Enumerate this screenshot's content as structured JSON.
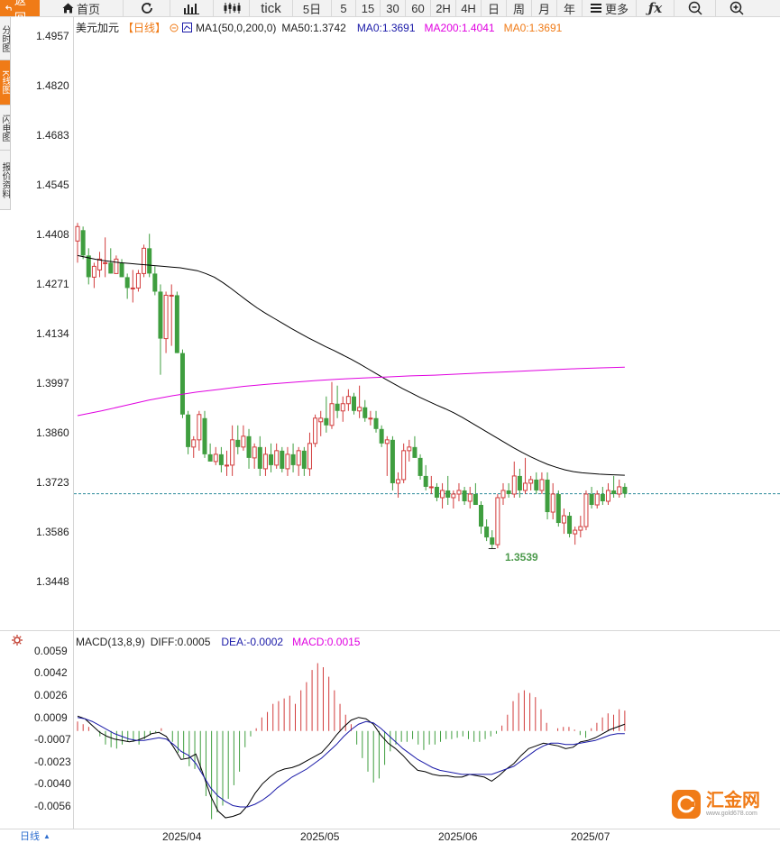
{
  "toolbar": {
    "back_label": "返回",
    "home_label": "首页",
    "more_label": "更多",
    "period_5d": "5日",
    "period_5": "5",
    "period_15": "15",
    "period_30": "30",
    "period_60": "60",
    "period_2h": "2H",
    "period_4h": "4H",
    "period_day": "日",
    "period_week": "周",
    "period_month": "月",
    "period_year": "年",
    "tick_label": "tick"
  },
  "left_tabs": [
    "分时图",
    "K线图",
    "闪电图",
    "报价资料"
  ],
  "legend": {
    "symbol": "美元加元",
    "period": "【日线】",
    "ma_name": "MA1(50,0,200,0)",
    "ma50": "MA50:1.3742",
    "ma0a": "MA0:1.3691",
    "ma200": "MA200:1.4041",
    "ma0b": "MA0:1.3691"
  },
  "macd_legend": {
    "name": "MACD(13,8,9)",
    "diff": "DIFF:0.0005",
    "dea": "DEA:-0.0002",
    "macd": "MACD:0.0015"
  },
  "price_axis": [
    "1.4957",
    "1.4820",
    "1.4683",
    "1.4545",
    "1.4408",
    "1.4271",
    "1.4134",
    "1.3997",
    "1.3860",
    "1.3723",
    "1.3586",
    "1.3448"
  ],
  "macd_axis": [
    "0.0059",
    "0.0042",
    "0.0026",
    "0.0009",
    "-0.0007",
    "-0.0023",
    "-0.0040",
    "-0.0056"
  ],
  "low_annotation": "1.3539",
  "current_price": 1.3691,
  "dates": [
    "2025/04",
    "2025/05",
    "2025/06",
    "2025/07"
  ],
  "bottom_period": "日线",
  "logo": {
    "name": "汇金网",
    "url": "www.gold678.com"
  },
  "colors": {
    "up": "#d23c3c",
    "down": "#3f9e3f",
    "ma50": "#000000",
    "ma200": "#e000e0",
    "accent": "#f07b17",
    "dea": "#1a1aa8",
    "macd_pos": "#d23c3c",
    "macd_neg": "#3f9e3f"
  },
  "chart_data": {
    "type": "candlestick",
    "title": "美元加元【日线】",
    "ylim": [
      1.34,
      1.5
    ],
    "candles": [
      {
        "o": 1.439,
        "h": 1.444,
        "l": 1.433,
        "c": 1.443
      },
      {
        "o": 1.442,
        "h": 1.443,
        "l": 1.434,
        "c": 1.435
      },
      {
        "o": 1.435,
        "h": 1.437,
        "l": 1.427,
        "c": 1.429
      },
      {
        "o": 1.429,
        "h": 1.433,
        "l": 1.426,
        "c": 1.432
      },
      {
        "o": 1.431,
        "h": 1.436,
        "l": 1.429,
        "c": 1.434
      },
      {
        "o": 1.433,
        "h": 1.44,
        "l": 1.429,
        "c": 1.433
      },
      {
        "o": 1.433,
        "h": 1.437,
        "l": 1.43,
        "c": 1.43
      },
      {
        "o": 1.43,
        "h": 1.435,
        "l": 1.43,
        "c": 1.434
      },
      {
        "o": 1.433,
        "h": 1.434,
        "l": 1.429,
        "c": 1.429
      },
      {
        "o": 1.429,
        "h": 1.43,
        "l": 1.423,
        "c": 1.426
      },
      {
        "o": 1.426,
        "h": 1.431,
        "l": 1.422,
        "c": 1.426
      },
      {
        "o": 1.426,
        "h": 1.431,
        "l": 1.425,
        "c": 1.43
      },
      {
        "o": 1.43,
        "h": 1.438,
        "l": 1.429,
        "c": 1.437
      },
      {
        "o": 1.437,
        "h": 1.441,
        "l": 1.429,
        "c": 1.43
      },
      {
        "o": 1.43,
        "h": 1.432,
        "l": 1.424,
        "c": 1.425
      },
      {
        "o": 1.425,
        "h": 1.427,
        "l": 1.402,
        "c": 1.412
      },
      {
        "o": 1.412,
        "h": 1.425,
        "l": 1.408,
        "c": 1.424
      },
      {
        "o": 1.424,
        "h": 1.427,
        "l": 1.41,
        "c": 1.424
      },
      {
        "o": 1.424,
        "h": 1.425,
        "l": 1.408,
        "c": 1.408
      },
      {
        "o": 1.408,
        "h": 1.409,
        "l": 1.39,
        "c": 1.391
      },
      {
        "o": 1.391,
        "h": 1.392,
        "l": 1.38,
        "c": 1.382
      },
      {
        "o": 1.382,
        "h": 1.385,
        "l": 1.379,
        "c": 1.384
      },
      {
        "o": 1.384,
        "h": 1.392,
        "l": 1.381,
        "c": 1.391
      },
      {
        "o": 1.39,
        "h": 1.392,
        "l": 1.379,
        "c": 1.38
      },
      {
        "o": 1.38,
        "h": 1.383,
        "l": 1.378,
        "c": 1.378
      },
      {
        "o": 1.378,
        "h": 1.382,
        "l": 1.377,
        "c": 1.38
      },
      {
        "o": 1.38,
        "h": 1.382,
        "l": 1.375,
        "c": 1.377
      },
      {
        "o": 1.377,
        "h": 1.381,
        "l": 1.374,
        "c": 1.377
      },
      {
        "o": 1.377,
        "h": 1.388,
        "l": 1.374,
        "c": 1.384
      },
      {
        "o": 1.384,
        "h": 1.388,
        "l": 1.38,
        "c": 1.382
      },
      {
        "o": 1.382,
        "h": 1.388,
        "l": 1.381,
        "c": 1.385
      },
      {
        "o": 1.385,
        "h": 1.387,
        "l": 1.376,
        "c": 1.379
      },
      {
        "o": 1.379,
        "h": 1.383,
        "l": 1.376,
        "c": 1.382
      },
      {
        "o": 1.382,
        "h": 1.385,
        "l": 1.374,
        "c": 1.376
      },
      {
        "o": 1.376,
        "h": 1.382,
        "l": 1.374,
        "c": 1.38
      },
      {
        "o": 1.38,
        "h": 1.383,
        "l": 1.375,
        "c": 1.377
      },
      {
        "o": 1.377,
        "h": 1.383,
        "l": 1.376,
        "c": 1.381
      },
      {
        "o": 1.381,
        "h": 1.382,
        "l": 1.375,
        "c": 1.376
      },
      {
        "o": 1.376,
        "h": 1.382,
        "l": 1.374,
        "c": 1.38
      },
      {
        "o": 1.38,
        "h": 1.383,
        "l": 1.375,
        "c": 1.377
      },
      {
        "o": 1.377,
        "h": 1.382,
        "l": 1.374,
        "c": 1.381
      },
      {
        "o": 1.381,
        "h": 1.382,
        "l": 1.374,
        "c": 1.376
      },
      {
        "o": 1.376,
        "h": 1.386,
        "l": 1.374,
        "c": 1.383
      },
      {
        "o": 1.383,
        "h": 1.391,
        "l": 1.382,
        "c": 1.39
      },
      {
        "o": 1.389,
        "h": 1.392,
        "l": 1.385,
        "c": 1.39
      },
      {
        "o": 1.39,
        "h": 1.396,
        "l": 1.386,
        "c": 1.388
      },
      {
        "o": 1.388,
        "h": 1.4,
        "l": 1.387,
        "c": 1.394
      },
      {
        "o": 1.394,
        "h": 1.399,
        "l": 1.39,
        "c": 1.392
      },
      {
        "o": 1.392,
        "h": 1.396,
        "l": 1.389,
        "c": 1.394
      },
      {
        "o": 1.394,
        "h": 1.398,
        "l": 1.392,
        "c": 1.396
      },
      {
        "o": 1.396,
        "h": 1.397,
        "l": 1.391,
        "c": 1.392
      },
      {
        "o": 1.392,
        "h": 1.399,
        "l": 1.39,
        "c": 1.393
      },
      {
        "o": 1.393,
        "h": 1.395,
        "l": 1.389,
        "c": 1.39
      },
      {
        "o": 1.39,
        "h": 1.392,
        "l": 1.388,
        "c": 1.39
      },
      {
        "o": 1.39,
        "h": 1.392,
        "l": 1.386,
        "c": 1.387
      },
      {
        "o": 1.387,
        "h": 1.388,
        "l": 1.382,
        "c": 1.383
      },
      {
        "o": 1.383,
        "h": 1.385,
        "l": 1.374,
        "c": 1.384
      },
      {
        "o": 1.384,
        "h": 1.385,
        "l": 1.37,
        "c": 1.372
      },
      {
        "o": 1.372,
        "h": 1.375,
        "l": 1.368,
        "c": 1.373
      },
      {
        "o": 1.373,
        "h": 1.383,
        "l": 1.372,
        "c": 1.381
      },
      {
        "o": 1.381,
        "h": 1.384,
        "l": 1.378,
        "c": 1.382
      },
      {
        "o": 1.382,
        "h": 1.385,
        "l": 1.379,
        "c": 1.379
      },
      {
        "o": 1.379,
        "h": 1.38,
        "l": 1.373,
        "c": 1.374
      },
      {
        "o": 1.374,
        "h": 1.377,
        "l": 1.37,
        "c": 1.371
      },
      {
        "o": 1.371,
        "h": 1.374,
        "l": 1.369,
        "c": 1.371
      },
      {
        "o": 1.371,
        "h": 1.372,
        "l": 1.367,
        "c": 1.368
      },
      {
        "o": 1.368,
        "h": 1.372,
        "l": 1.365,
        "c": 1.37
      },
      {
        "o": 1.37,
        "h": 1.374,
        "l": 1.366,
        "c": 1.368
      },
      {
        "o": 1.368,
        "h": 1.37,
        "l": 1.365,
        "c": 1.369
      },
      {
        "o": 1.369,
        "h": 1.372,
        "l": 1.367,
        "c": 1.37
      },
      {
        "o": 1.37,
        "h": 1.371,
        "l": 1.366,
        "c": 1.367
      },
      {
        "o": 1.367,
        "h": 1.371,
        "l": 1.365,
        "c": 1.369
      },
      {
        "o": 1.369,
        "h": 1.372,
        "l": 1.366,
        "c": 1.366
      },
      {
        "o": 1.366,
        "h": 1.367,
        "l": 1.358,
        "c": 1.36
      },
      {
        "o": 1.36,
        "h": 1.362,
        "l": 1.356,
        "c": 1.357
      },
      {
        "o": 1.357,
        "h": 1.359,
        "l": 1.3539,
        "c": 1.355
      },
      {
        "o": 1.355,
        "h": 1.369,
        "l": 1.354,
        "c": 1.368
      },
      {
        "o": 1.368,
        "h": 1.372,
        "l": 1.366,
        "c": 1.37
      },
      {
        "o": 1.37,
        "h": 1.372,
        "l": 1.368,
        "c": 1.369
      },
      {
        "o": 1.369,
        "h": 1.378,
        "l": 1.368,
        "c": 1.374
      },
      {
        "o": 1.374,
        "h": 1.376,
        "l": 1.368,
        "c": 1.37
      },
      {
        "o": 1.37,
        "h": 1.379,
        "l": 1.369,
        "c": 1.372
      },
      {
        "o": 1.372,
        "h": 1.374,
        "l": 1.37,
        "c": 1.373
      },
      {
        "o": 1.373,
        "h": 1.375,
        "l": 1.369,
        "c": 1.37
      },
      {
        "o": 1.37,
        "h": 1.375,
        "l": 1.369,
        "c": 1.373
      },
      {
        "o": 1.373,
        "h": 1.375,
        "l": 1.362,
        "c": 1.364
      },
      {
        "o": 1.364,
        "h": 1.372,
        "l": 1.362,
        "c": 1.369
      },
      {
        "o": 1.369,
        "h": 1.37,
        "l": 1.36,
        "c": 1.361
      },
      {
        "o": 1.361,
        "h": 1.365,
        "l": 1.358,
        "c": 1.363
      },
      {
        "o": 1.363,
        "h": 1.364,
        "l": 1.357,
        "c": 1.358
      },
      {
        "o": 1.358,
        "h": 1.36,
        "l": 1.355,
        "c": 1.359
      },
      {
        "o": 1.359,
        "h": 1.363,
        "l": 1.357,
        "c": 1.36
      },
      {
        "o": 1.36,
        "h": 1.37,
        "l": 1.359,
        "c": 1.369
      },
      {
        "o": 1.369,
        "h": 1.371,
        "l": 1.365,
        "c": 1.366
      },
      {
        "o": 1.366,
        "h": 1.37,
        "l": 1.365,
        "c": 1.369
      },
      {
        "o": 1.369,
        "h": 1.371,
        "l": 1.366,
        "c": 1.367
      },
      {
        "o": 1.367,
        "h": 1.372,
        "l": 1.366,
        "c": 1.37
      },
      {
        "o": 1.37,
        "h": 1.374,
        "l": 1.368,
        "c": 1.369
      },
      {
        "o": 1.369,
        "h": 1.373,
        "l": 1.368,
        "c": 1.371
      },
      {
        "o": 1.371,
        "h": 1.372,
        "l": 1.368,
        "c": 1.3691
      }
    ],
    "ma50": [
      1.435,
      1.4345,
      1.434,
      1.4336,
      1.4333,
      1.433,
      1.4328,
      1.4326,
      1.4324,
      1.4322,
      1.432,
      1.4318,
      1.4316,
      1.4312,
      1.4308,
      1.43,
      1.429,
      1.4275,
      1.4258,
      1.424,
      1.4222,
      1.4205,
      1.419,
      1.4176,
      1.4162,
      1.4148,
      1.4135,
      1.4122,
      1.411,
      1.4098,
      1.4087,
      1.4075,
      1.4063,
      1.405,
      1.4036,
      1.4022,
      1.4008,
      1.3995,
      1.3982,
      1.397,
      1.3958,
      1.3947,
      1.3936,
      1.3926,
      1.3915,
      1.3902,
      1.3888,
      1.3874,
      1.386,
      1.3846,
      1.3832,
      1.3818,
      1.3805,
      1.3793,
      1.3782,
      1.3772,
      1.3764,
      1.3757,
      1.3752,
      1.3749,
      1.3747,
      1.3745,
      1.3744,
      1.3743,
      1.3742
    ],
    "ma200": [
      1.3907,
      1.392,
      1.3935,
      1.395,
      1.3962,
      1.3972,
      1.398,
      1.3988,
      1.3994,
      1.3999,
      1.4004,
      1.4008,
      1.4011,
      1.4014,
      1.4017,
      1.4019,
      1.4022,
      1.4025,
      1.4028,
      1.4031,
      1.4034,
      1.4037,
      1.4039,
      1.4041
    ],
    "macd_ylim": [
      -0.007,
      0.0065
    ],
    "macd_hist": [
      0.0007,
      0.0005,
      0.0003,
      0.0,
      -0.0004,
      -0.001,
      -0.0012,
      -0.0013,
      -0.001,
      -0.0008,
      -0.0008,
      -0.001,
      -0.0006,
      -0.0003,
      -0.0001,
      0.0002,
      0.0,
      -0.0008,
      -0.0016,
      -0.002,
      -0.0026,
      -0.0028,
      -0.003,
      -0.0048,
      -0.0065,
      -0.006,
      -0.0055,
      -0.005,
      -0.004,
      -0.003,
      -0.0012,
      -0.0004,
      0.0002,
      0.001,
      0.0014,
      0.002,
      0.0022,
      0.0024,
      0.0026,
      0.002,
      0.003,
      0.0036,
      0.0045,
      0.005,
      0.0047,
      0.004,
      0.003,
      0.002,
      0.0012,
      0.0005,
      -0.001,
      -0.002,
      -0.003,
      -0.0038,
      -0.0035,
      -0.0025,
      -0.0015,
      -0.001,
      -0.0008,
      -0.0008,
      -0.0006,
      -0.001,
      -0.0014,
      -0.001,
      -0.001,
      -0.0008,
      -0.0006,
      -0.0006,
      -0.0005,
      -0.0004,
      -0.0006,
      -0.0008,
      -0.0008,
      -0.0006,
      -0.0004,
      -0.0002,
      0.0004,
      0.0012,
      0.0022,
      0.0028,
      0.003,
      0.0028,
      0.0025,
      0.0016,
      0.0006,
      0.0,
      0.0002,
      0.0003,
      0.0003,
      0.0001,
      -0.0003,
      -0.0005,
      0.0002,
      0.0006,
      0.001,
      0.0013,
      0.0012,
      0.0016,
      0.0015
    ],
    "diff": [
      0.0011,
      0.0009,
      0.0004,
      -0.0001,
      -0.0004,
      -0.0006,
      -0.0007,
      -0.0008,
      -0.0007,
      -0.0005,
      -0.0002,
      -0.0001,
      -0.0004,
      -0.0012,
      -0.0021,
      -0.002,
      -0.0017,
      -0.0032,
      -0.0048,
      -0.0059,
      -0.0064,
      -0.0063,
      -0.0061,
      -0.0055,
      -0.0046,
      -0.0039,
      -0.0034,
      -0.003,
      -0.0028,
      -0.0027,
      -0.0025,
      -0.0022,
      -0.0019,
      -0.0016,
      -0.001,
      -0.0003,
      0.0003,
      0.0008,
      0.001,
      0.0009,
      0.0005,
      -0.0003,
      -0.0009,
      -0.0013,
      -0.0018,
      -0.0024,
      -0.0029,
      -0.003,
      -0.0032,
      -0.0033,
      -0.0033,
      -0.0034,
      -0.0034,
      -0.0032,
      -0.0033,
      -0.0034,
      -0.0037,
      -0.0033,
      -0.0028,
      -0.0024,
      -0.0018,
      -0.0013,
      -0.0011,
      -0.0009,
      -0.001,
      -0.0011,
      -0.0013,
      -0.0012,
      -0.0008,
      -0.0007,
      -0.0005,
      -0.0002,
      0.0001,
      0.0003,
      0.0005
    ],
    "dea": [
      0.001,
      0.0009,
      0.0007,
      0.0004,
      0.0001,
      -0.0002,
      -0.0004,
      -0.0006,
      -0.0007,
      -0.0007,
      -0.0006,
      -0.0005,
      -0.0006,
      -0.001,
      -0.0015,
      -0.0018,
      -0.0024,
      -0.0033,
      -0.0042,
      -0.0048,
      -0.0052,
      -0.0055,
      -0.0056,
      -0.0056,
      -0.0054,
      -0.0051,
      -0.0047,
      -0.0042,
      -0.0038,
      -0.0034,
      -0.0031,
      -0.0028,
      -0.0024,
      -0.002,
      -0.0015,
      -0.001,
      -0.0004,
      0.0001,
      0.0005,
      0.0007,
      0.0006,
      0.0002,
      -0.0003,
      -0.0008,
      -0.0013,
      -0.0017,
      -0.0021,
      -0.0024,
      -0.0027,
      -0.0029,
      -0.003,
      -0.0031,
      -0.0032,
      -0.0032,
      -0.0032,
      -0.0032,
      -0.0032,
      -0.003,
      -0.0028,
      -0.0026,
      -0.0022,
      -0.0018,
      -0.0014,
      -0.0011,
      -0.0009,
      -0.0009,
      -0.001,
      -0.001,
      -0.0009,
      -0.0008,
      -0.0007,
      -0.0005,
      -0.0003,
      -0.0002,
      -0.0002
    ]
  }
}
